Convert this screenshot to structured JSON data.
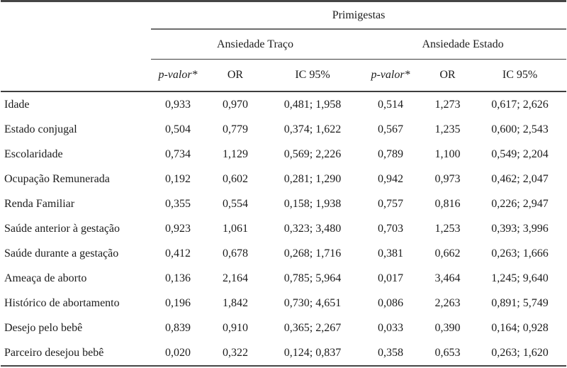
{
  "table": {
    "group_header": "Primigestas",
    "subgroups": [
      {
        "label": "Ansiedade Traço"
      },
      {
        "label": "Ansiedade Estado"
      }
    ],
    "columns": [
      "p-valor*",
      "OR",
      "IC 95%",
      "p-valor*",
      "OR",
      "IC 95%"
    ],
    "rows": [
      {
        "label": "Idade",
        "values": [
          "0,933",
          "0,970",
          "0,481; 1,958",
          "0,514",
          "1,273",
          "0,617; 2,626"
        ]
      },
      {
        "label": "Estado conjugal",
        "values": [
          "0,504",
          "0,779",
          "0,374; 1,622",
          "0,567",
          "1,235",
          "0,600; 2,543"
        ]
      },
      {
        "label": "Escolaridade",
        "values": [
          "0,734",
          "1,129",
          "0,569; 2,226",
          "0,789",
          "1,100",
          "0,549; 2,204"
        ]
      },
      {
        "label": "Ocupação Remunerada",
        "values": [
          "0,192",
          "0,602",
          "0,281; 1,290",
          "0,942",
          "0,973",
          "0,462; 2,047"
        ]
      },
      {
        "label": "Renda Familiar",
        "values": [
          "0,355",
          "0,554",
          "0,158; 1,938",
          "0,757",
          "0,816",
          "0,226; 2,947"
        ]
      },
      {
        "label": "Saúde anterior à gestação",
        "values": [
          "0,923",
          "1,061",
          "0,323; 3,480",
          "0,703",
          "1,253",
          "0,393; 3,996"
        ]
      },
      {
        "label": "Saúde durante a gestação",
        "values": [
          "0,412",
          "0,678",
          "0,268; 1,716",
          "0,381",
          "0,662",
          "0,263; 1,666"
        ]
      },
      {
        "label": "Ameaça de aborto",
        "values": [
          "0,136",
          "2,164",
          "0,785; 5,964",
          "0,017",
          "3,464",
          "1,245; 9,640"
        ]
      },
      {
        "label": "Histórico de abortamento",
        "values": [
          "0,196",
          "1,842",
          "0,730; 4,651",
          "0,086",
          "2,263",
          "0,891; 5,749"
        ]
      },
      {
        "label": "Desejo pelo bebê",
        "values": [
          "0,839",
          "0,910",
          "0,365; 2,267",
          "0,033",
          "0,390",
          "0,164; 0,928"
        ]
      },
      {
        "label": "Parceiro desejou bebê",
        "values": [
          "0,020",
          "0,322",
          "0,124; 0,837",
          "0,358",
          "0,653",
          "0,263; 1,620"
        ]
      }
    ]
  },
  "colors": {
    "background": "#ffffff",
    "text": "#1c1c1c",
    "border_heavy": "#454545",
    "border_light": "#6d6d6d"
  }
}
